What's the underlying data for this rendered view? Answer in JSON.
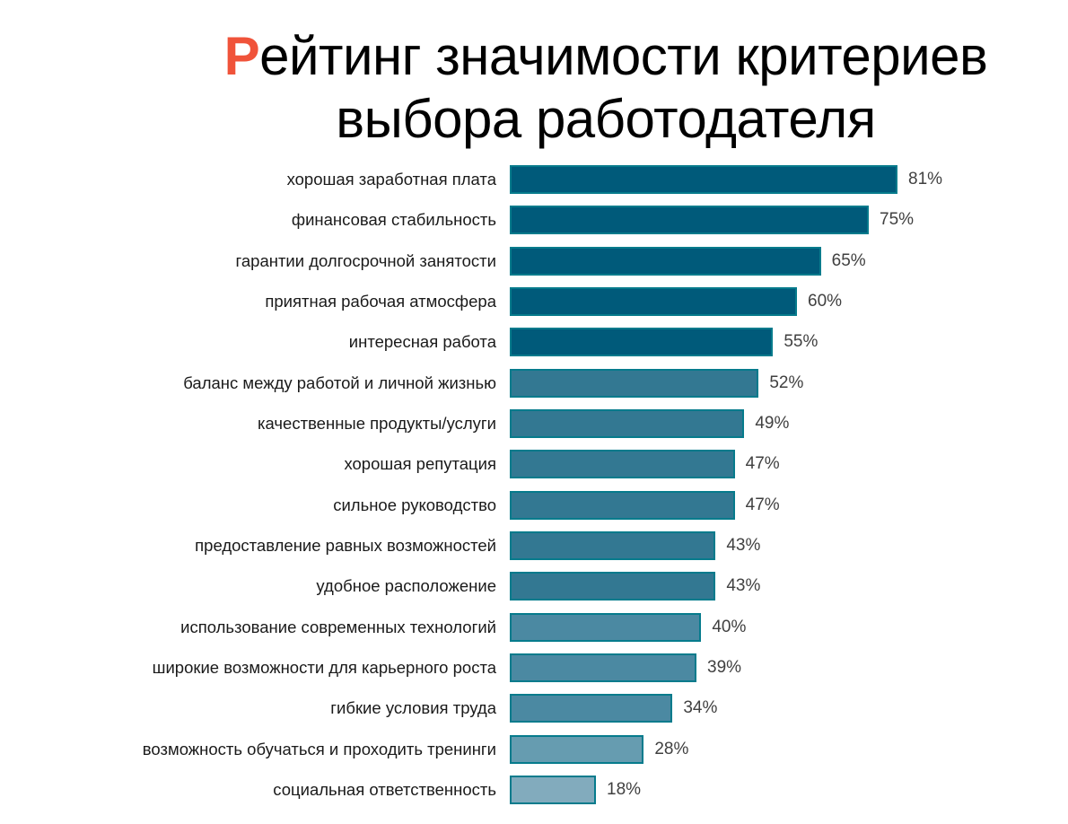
{
  "title": {
    "accent_letter": "Р",
    "line1_rest": "ейтинг значимости критериев",
    "line2": "выбора работодателя",
    "accent_color": "#f0533a"
  },
  "chart_data": {
    "type": "bar",
    "orientation": "horizontal",
    "title": "Рейтинг значимости критериев выбора работодателя",
    "xlabel": "",
    "ylabel": "",
    "xlim": [
      0,
      100
    ],
    "grid": false,
    "legend": null,
    "value_suffix": "%",
    "categories": [
      "хорошая заработная плата",
      "финансовая стабильность",
      "гарантии долгосрочной занятости",
      "приятная рабочая атмосфера",
      "интересная работа",
      "баланс между работой и личной жизнью",
      "качественные продукты/услуги",
      "хорошая репутация",
      "сильное руководство",
      "предоставление равных возможностей",
      "удобное расположение",
      "использование современных технологий",
      "широкие возможности для карьерного роста",
      "гибкие условия труда",
      "возможность обучаться и проходить тренинги",
      "социальная ответственность"
    ],
    "values": [
      81,
      75,
      65,
      60,
      55,
      52,
      49,
      47,
      47,
      43,
      43,
      40,
      39,
      34,
      28,
      18
    ],
    "labels": [
      "81%",
      "75%",
      "65%",
      "60%",
      "55%",
      "52%",
      "49%",
      "47%",
      "47%",
      "43%",
      "43%",
      "40%",
      "39%",
      "34%",
      "28%",
      "18%"
    ],
    "colors": [
      "#005a7a",
      "#005a7a",
      "#005a7a",
      "#005a7a",
      "#005a7a",
      "#337892",
      "#337892",
      "#337892",
      "#337892",
      "#337892",
      "#337892",
      "#4b89a2",
      "#4b89a2",
      "#4b89a2",
      "#669cb0",
      "#82abbd"
    ],
    "border_color": "#067b8c"
  }
}
